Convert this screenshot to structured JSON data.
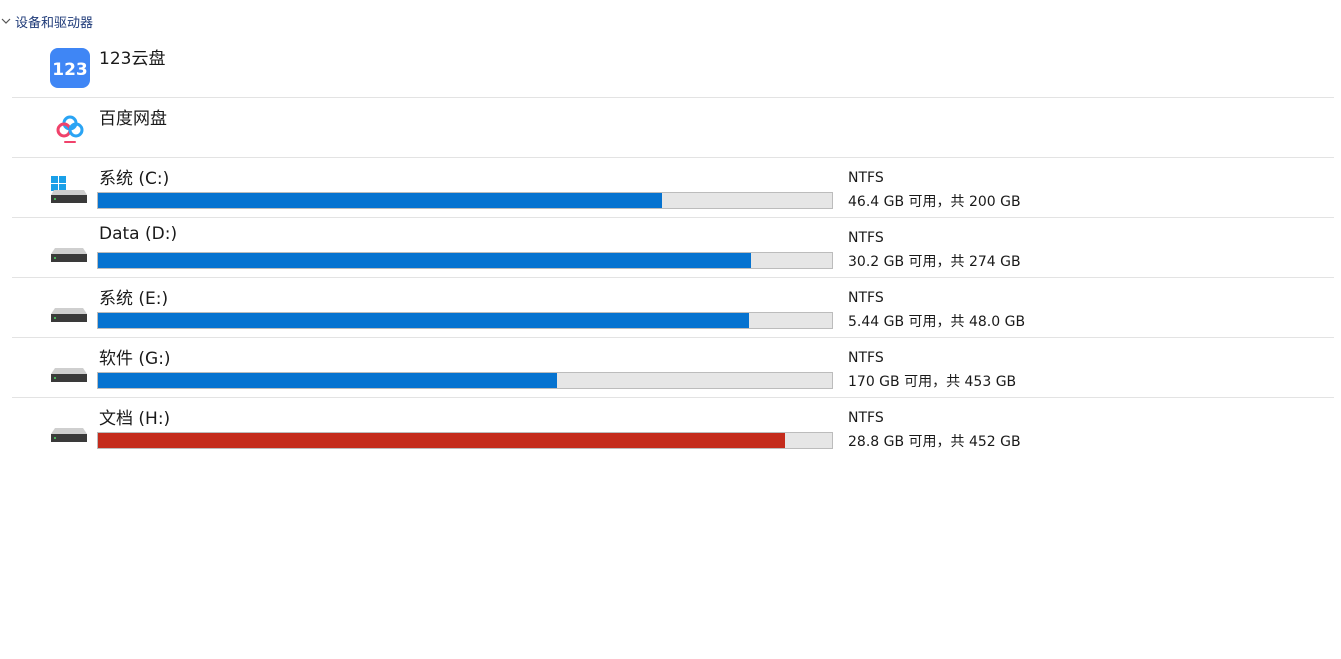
{
  "group": {
    "title": "设备和驱动器",
    "expanded": true
  },
  "cloud_items": [
    {
      "name": "123云盘",
      "icon": "123-cloud-icon"
    },
    {
      "name": "百度网盘",
      "icon": "baidu-netdisk-icon"
    }
  ],
  "drives": [
    {
      "name": "系统 (C:)",
      "fs": "NTFS",
      "space": "46.4 GB 可用，共 200 GB",
      "used_fraction": 0.768,
      "icon": "windows-drive-icon",
      "full": false
    },
    {
      "name": "Data (D:)",
      "fs": "NTFS",
      "space": "30.2 GB 可用，共 274 GB",
      "used_fraction": 0.89,
      "icon": "drive-icon",
      "full": false
    },
    {
      "name": "系统 (E:)",
      "fs": "NTFS",
      "space": "5.44 GB 可用，共 48.0 GB",
      "used_fraction": 0.887,
      "icon": "drive-icon",
      "full": false
    },
    {
      "name": "软件 (G:)",
      "fs": "NTFS",
      "space": "170 GB 可用，共 453 GB",
      "used_fraction": 0.625,
      "icon": "drive-icon",
      "full": false
    },
    {
      "name": "文档 (H:)",
      "fs": "NTFS",
      "space": "28.8 GB 可用，共 452 GB",
      "used_fraction": 0.936,
      "icon": "drive-icon",
      "full": true
    }
  ],
  "colors": {
    "bar_normal": "#0673d0",
    "bar_full": "#c42b1c",
    "bar_track": "#e6e6e6",
    "group_title": "#1e3a78"
  }
}
